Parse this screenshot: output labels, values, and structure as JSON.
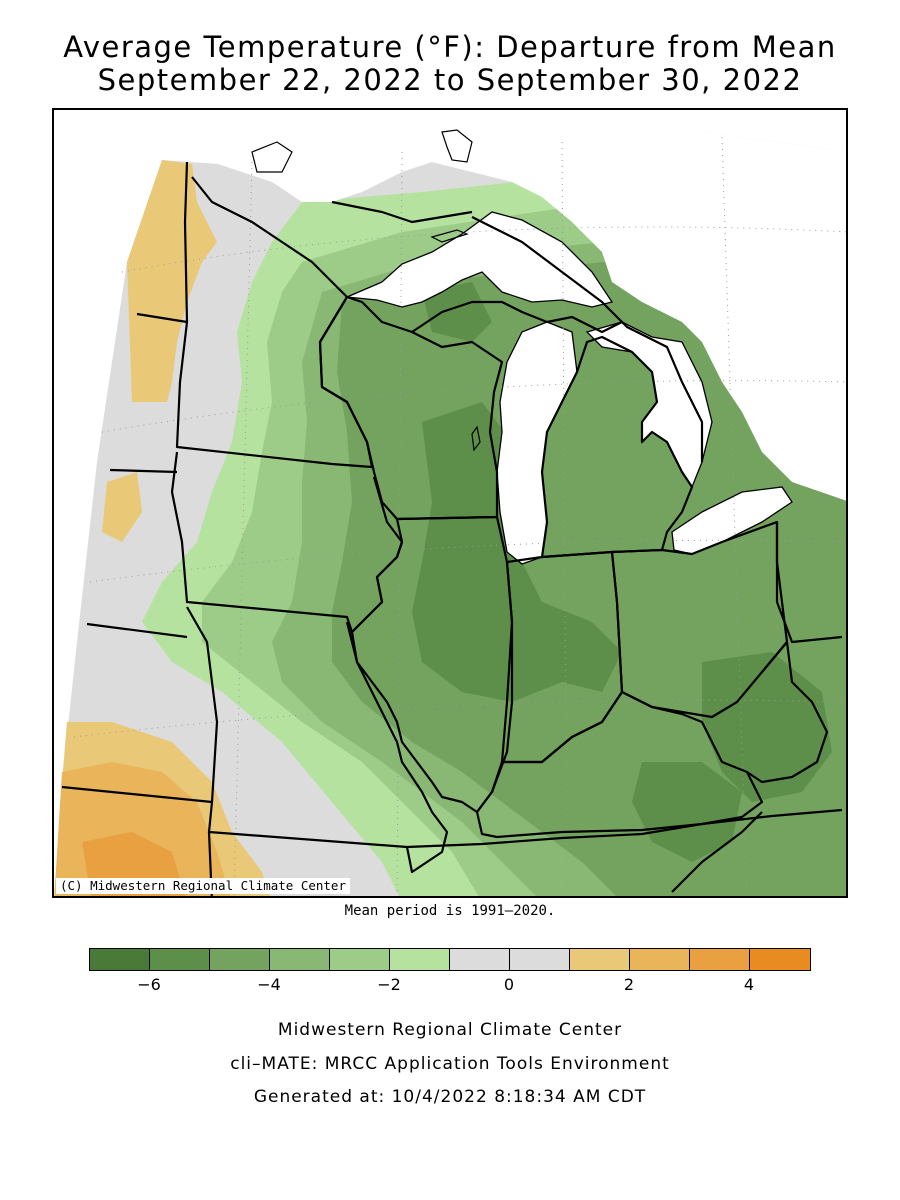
{
  "title_line1": "Average Temperature (°F): Departure from Mean",
  "title_line2": "September 22, 2022 to September 30, 2022",
  "map": {
    "credit": "(C) Midwestern Regional Climate Center",
    "variable": "average temperature departure",
    "units": "°F"
  },
  "mean_note": "Mean period is 1991–2020.",
  "legend": {
    "colors": [
      "#4a7a38",
      "#5e8f4a",
      "#73a35e",
      "#88b874",
      "#9dcc88",
      "#b6e2a0",
      "#dcdcdc",
      "#dcdcdc",
      "#e9c878",
      "#e9b45a",
      "#e9a040",
      "#e88c22"
    ],
    "tick_labels": [
      "−6",
      "−4",
      "−2",
      "0",
      "2",
      "4"
    ]
  },
  "footer": {
    "line1": "Midwestern Regional Climate Center",
    "line2": "cli–MATE: MRCC Application Tools Environment",
    "line3": "Generated at: 10/4/2022 8:18:34 AM CDT"
  }
}
